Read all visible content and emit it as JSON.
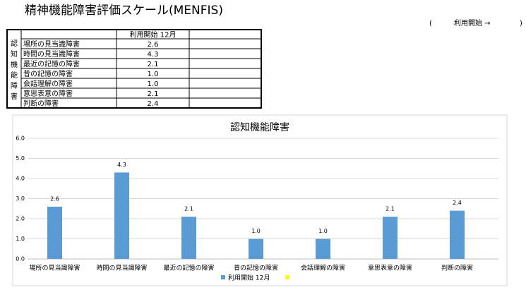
{
  "page_title": "精神機能障害評価スケール(MENFIS)",
  "header_right": {
    "open": "(",
    "label": "利用開始 →",
    "close": ")"
  },
  "table": {
    "side_label": [
      "認",
      "知",
      "機",
      "能",
      "障",
      "害"
    ],
    "header": "利用開始 12月",
    "rows": [
      [
        "場所の見当識障害",
        "2.6"
      ],
      [
        "時間の見当識障害",
        "4.3"
      ],
      [
        "最近の記憶の障害",
        "2.1"
      ],
      [
        "昔の記憶の障害",
        "1.0"
      ],
      [
        "会話理解の障害",
        "1.0"
      ],
      [
        "意思表意の障害",
        "2.1"
      ],
      [
        "判断の障害",
        "2.4"
      ]
    ]
  },
  "chart_data": {
    "type": "bar",
    "title": "認知機能障害",
    "categories": [
      "場所の見当識障害",
      "時間の見当識障害",
      "最近の記憶の障害",
      "昔の記憶の障害",
      "会話理解の障害",
      "意思表意の障害",
      "判断の障害"
    ],
    "series": [
      {
        "name": "利用開始 12月",
        "color": "#5b9bd5",
        "values": [
          2.6,
          4.3,
          2.1,
          1.0,
          1.0,
          2.1,
          2.4
        ],
        "value_labels": [
          "2.6",
          "4.3",
          "2.1",
          "1.0",
          "1.0",
          "2.1",
          "2.4"
        ]
      }
    ],
    "ylim": [
      0,
      6
    ],
    "yticks": [
      {
        "value": 0,
        "label": "0.0"
      },
      {
        "value": 1,
        "label": "1.0"
      },
      {
        "value": 2,
        "label": "2.0"
      },
      {
        "value": 3,
        "label": "3.0"
      },
      {
        "value": 4,
        "label": "4.0"
      },
      {
        "value": 5,
        "label": "5.0"
      },
      {
        "value": 6,
        "label": "6.0"
      }
    ],
    "grid": true,
    "legend": "bottom"
  }
}
